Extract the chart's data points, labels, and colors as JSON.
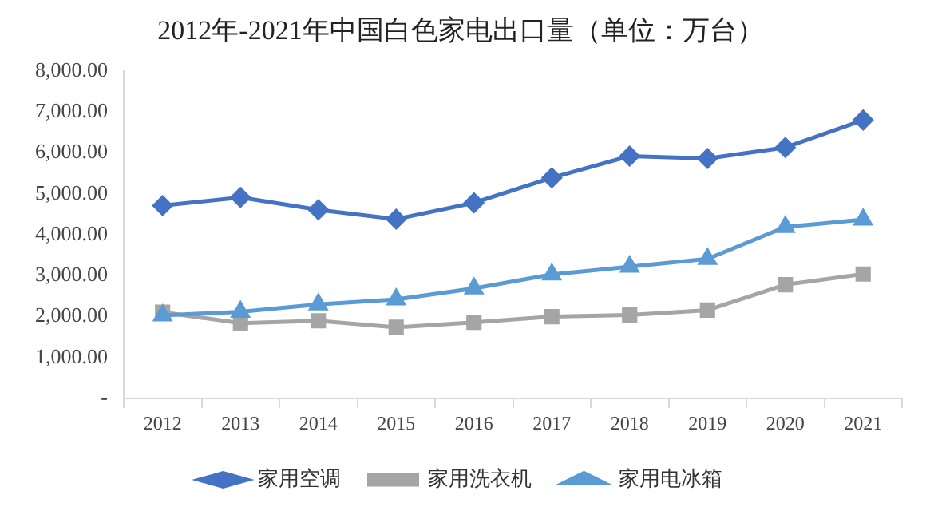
{
  "chart_data": {
    "type": "line",
    "title": "2012年-2021年中国白色家电出口量（单位：万台）",
    "categories": [
      "2012",
      "2013",
      "2014",
      "2015",
      "2016",
      "2017",
      "2018",
      "2019",
      "2020",
      "2021"
    ],
    "series": [
      {
        "name": "家用空调",
        "color": "#4472c4",
        "marker": "diamond",
        "values": [
          4710,
          4910,
          4610,
          4380,
          4780,
          5390,
          5920,
          5860,
          6130,
          6800
        ]
      },
      {
        "name": "家用洗衣机",
        "color": "#a5a5a5",
        "marker": "square",
        "values": [
          2110,
          1840,
          1900,
          1740,
          1860,
          2000,
          2040,
          2160,
          2780,
          3040
        ]
      },
      {
        "name": "家用电冰箱",
        "color": "#5b9bd5",
        "marker": "triangle",
        "values": [
          2030,
          2120,
          2300,
          2420,
          2690,
          3030,
          3220,
          3410,
          4190,
          4370
        ]
      }
    ],
    "ylim": [
      0,
      8000
    ],
    "yticks": [
      {
        "value": 0,
        "label": "-"
      },
      {
        "value": 1000,
        "label": "1,000.00"
      },
      {
        "value": 2000,
        "label": "2,000.00"
      },
      {
        "value": 3000,
        "label": "3,000.00"
      },
      {
        "value": 4000,
        "label": "4,000.00"
      },
      {
        "value": 5000,
        "label": "5,000.00"
      },
      {
        "value": 6000,
        "label": "6,000.00"
      },
      {
        "value": 7000,
        "label": "7,000.00"
      },
      {
        "value": 8000,
        "label": "8,000.00"
      }
    ],
    "grid": false,
    "legend": "bottom"
  }
}
